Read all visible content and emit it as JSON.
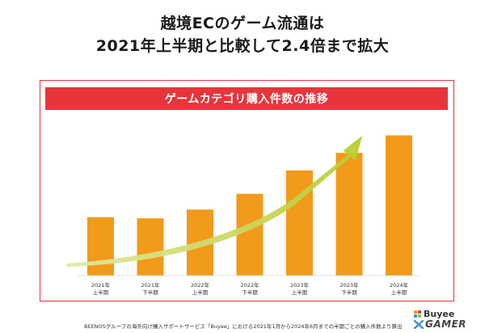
{
  "headline": {
    "line1": "越境ECのゲーム流通は",
    "line2": "2021年上半期と比較して2.4倍まで拡大"
  },
  "banner": "ゲームカテゴリ購入件数の推移",
  "colors": {
    "accent_red": "#e8353c",
    "bar_orange": "#f29a1a",
    "arrow_green": "#c8d44a"
  },
  "chart_data": {
    "type": "bar",
    "title": "ゲームカテゴリ購入件数の推移",
    "categories": [
      [
        "2021年",
        "上半期"
      ],
      [
        "2021年",
        "下半期"
      ],
      [
        "2022年",
        "上半期"
      ],
      [
        "2022年",
        "下半期"
      ],
      [
        "2023年",
        "上半期"
      ],
      [
        "2023年",
        "下半期"
      ],
      [
        "2024年",
        "上半期"
      ]
    ],
    "values": [
      1.0,
      0.98,
      1.13,
      1.4,
      1.8,
      2.1,
      2.4
    ],
    "ylim": [
      0,
      2.6
    ],
    "grid": false,
    "legend": "none",
    "value_labels": false,
    "trend_arrow": true
  },
  "footnote": "BEENOSグループの海外向け購入サポートサービス「Buyee」における2021年1月から2024年6月までの半期ごとの購入件数より算出",
  "logo": {
    "brand": "Buyee",
    "sub": "GAMER",
    "icon": "buyee-logo-icon"
  }
}
